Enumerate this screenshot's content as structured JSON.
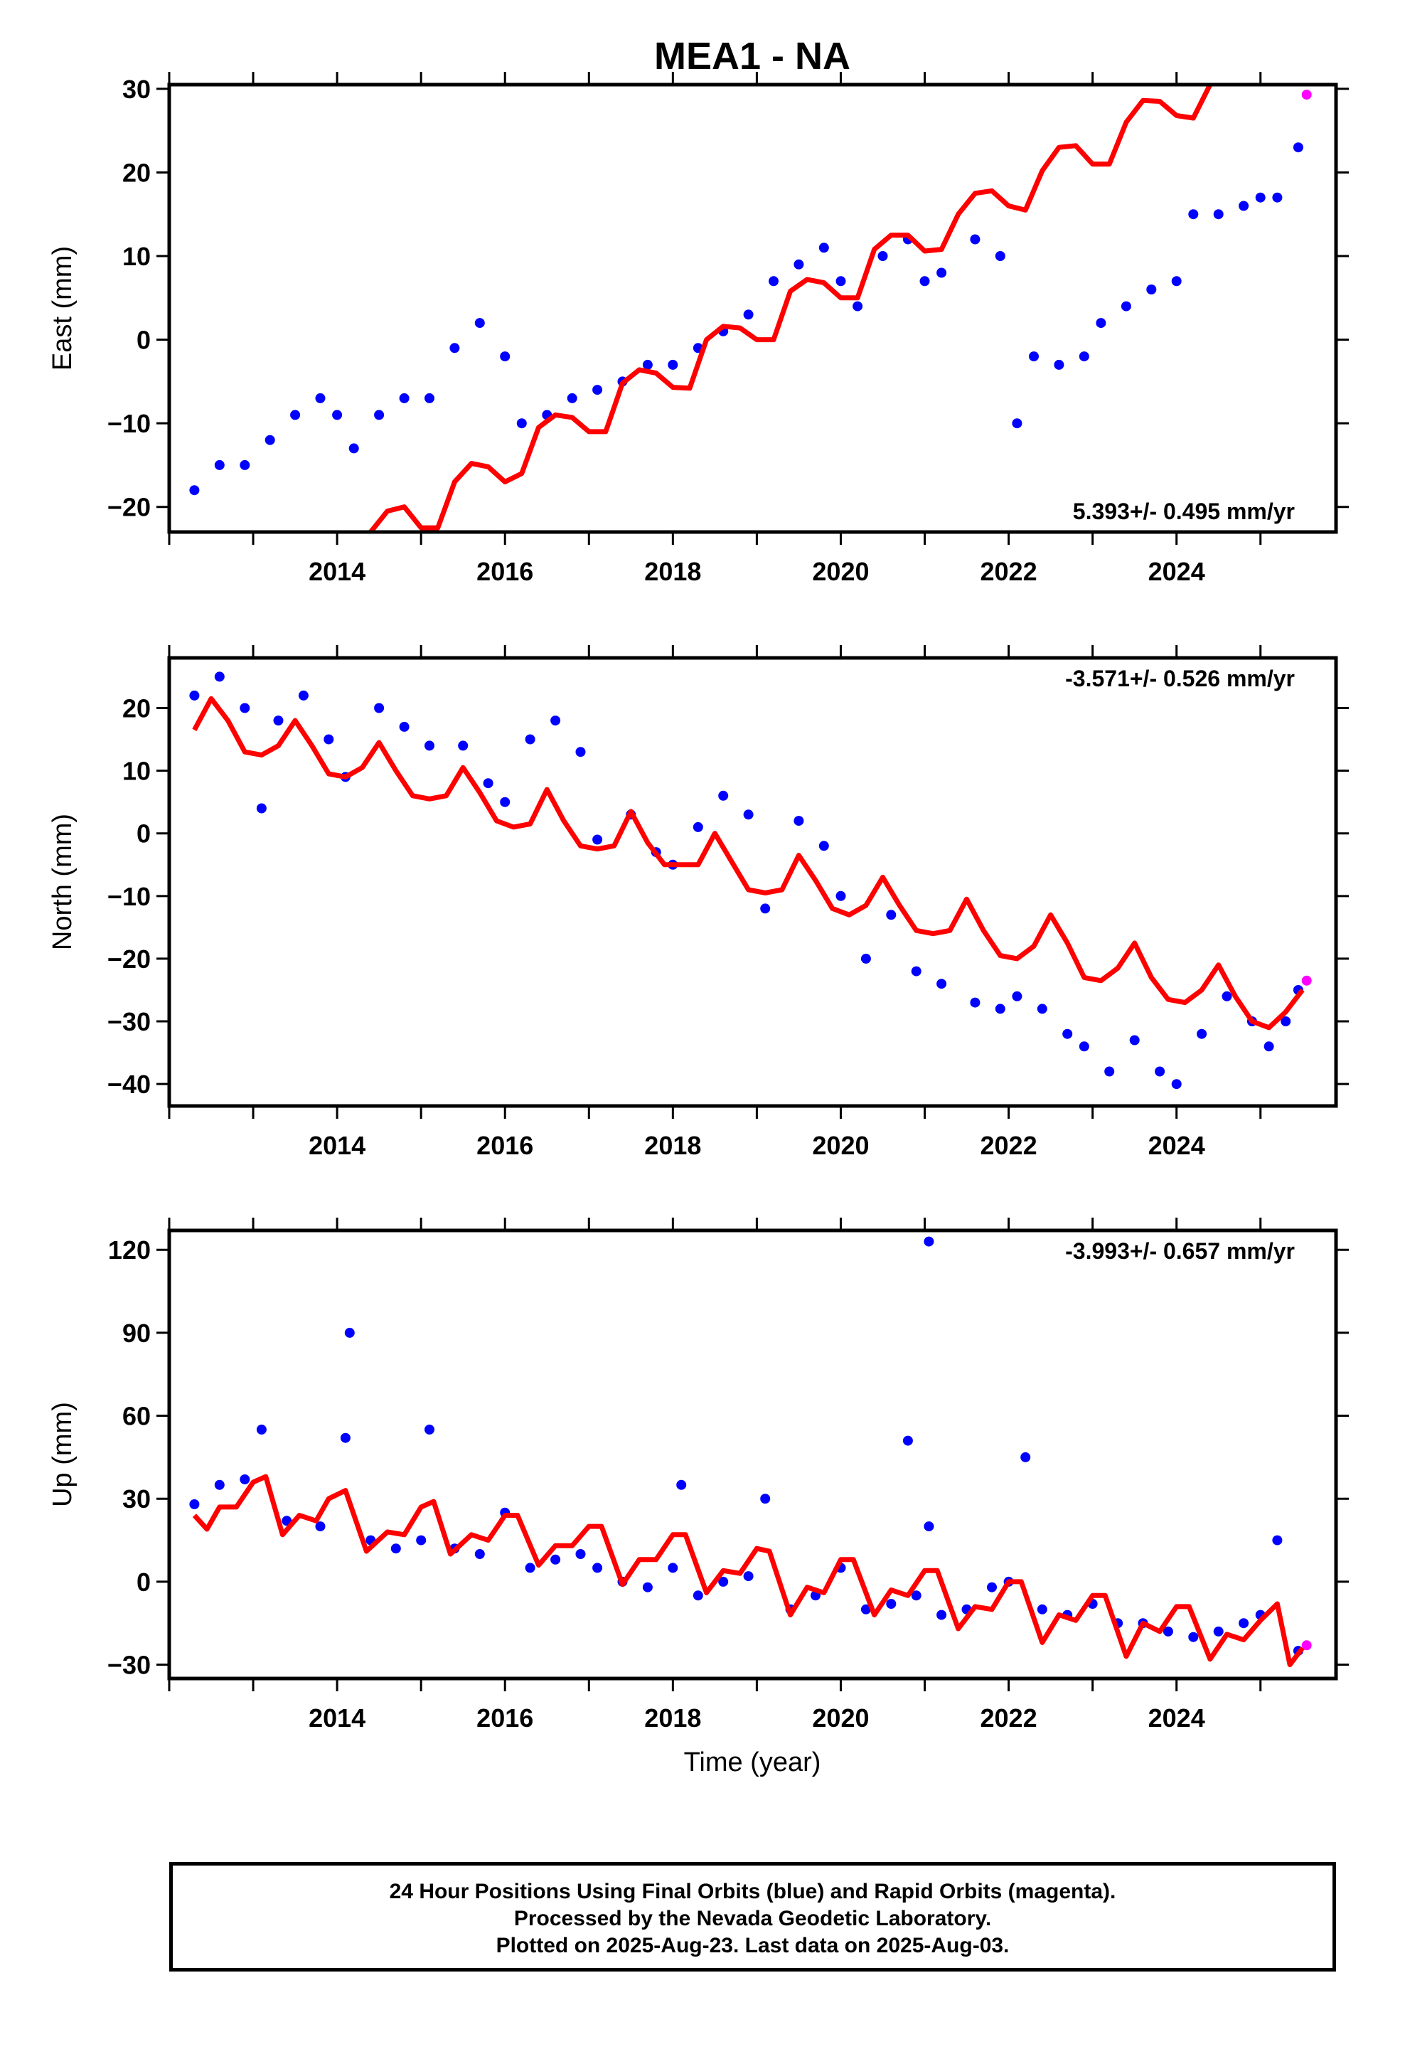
{
  "title": "MEA1 - NA",
  "xlabel": "Time (year)",
  "footer": {
    "line1": "24 Hour Positions Using Final Orbits (blue) and Rapid Orbits (magenta).",
    "line2": "Processed by the Nevada Geodetic Laboratory.",
    "line3": "Plotted on 2025-Aug-23. Last data on 2025-Aug-03."
  },
  "colors": {
    "final_orbits": "#0000ff",
    "rapid_orbits": "#ff00ff",
    "model_fit": "#ff0000",
    "axes": "#000000"
  },
  "chart_data": [
    {
      "type": "scatter",
      "panel": "east",
      "ylabel": "East (mm)",
      "rate_label": "5.393+/- 0.495 mm/yr",
      "xlim": [
        2012.0,
        2025.9
      ],
      "ylim": [
        -23,
        30.5
      ],
      "yticks": [
        -20,
        -10,
        0,
        10,
        20,
        30
      ],
      "xticks": [
        2014,
        2016,
        2018,
        2020,
        2022,
        2024
      ],
      "xtick_labels": [
        "2014",
        "2016",
        "2018",
        "2020",
        "2022",
        "2024"
      ],
      "series": [
        {
          "name": "Final Orbits",
          "x": [
            2012.3,
            2012.6,
            2012.9,
            2013.2,
            2013.5,
            2013.8,
            2014.0,
            2014.2,
            2014.5,
            2014.8,
            2015.1,
            2015.4,
            2015.7,
            2016.0,
            2016.2,
            2016.5,
            2016.8,
            2017.1,
            2017.4,
            2017.7,
            2018.0,
            2018.3,
            2018.6,
            2018.9,
            2019.2,
            2019.5,
            2019.8,
            2020.0,
            2020.2,
            2020.5,
            2020.8,
            2021.0,
            2021.2,
            2021.6,
            2021.9,
            2022.1,
            2022.3,
            2022.6,
            2022.9,
            2023.1,
            2023.4,
            2023.7,
            2024.0,
            2024.2,
            2024.5,
            2024.8,
            2025.0,
            2025.2,
            2025.45
          ],
          "y": [
            -18,
            -15,
            -15,
            -12,
            -9,
            -7,
            -9,
            -13,
            -9,
            -7,
            -7,
            -1,
            2,
            -2,
            -10,
            -9,
            -7,
            -6,
            -5,
            -3,
            -3,
            -1,
            1,
            3,
            7,
            9,
            11,
            7,
            4,
            10,
            12,
            7,
            8,
            12,
            10,
            -10,
            -2,
            -3,
            -2,
            2,
            4,
            6,
            7,
            15,
            15,
            16,
            17,
            17,
            23
          ]
        },
        {
          "name": "Rapid Orbits",
          "x": [
            2025.55
          ],
          "y": [
            29.3
          ]
        },
        {
          "name": "Model Fit",
          "x": [
            2014.4,
            2014.6,
            2014.8,
            2015.0,
            2015.2,
            2015.4,
            2015.6,
            2015.8,
            2016.0,
            2016.2,
            2016.4,
            2016.6,
            2016.8,
            2017.0,
            2017.2,
            2017.4,
            2017.6,
            2017.8,
            2018.0,
            2018.2,
            2018.4,
            2018.6,
            2018.8,
            2019.0,
            2019.2,
            2019.4,
            2019.6,
            2019.8,
            2020.0,
            2020.2,
            2020.4,
            2020.6,
            2020.8,
            2021.0,
            2021.2,
            2021.4,
            2021.6,
            2021.8,
            2022.0,
            2022.2,
            2022.4,
            2022.6,
            2022.8,
            2023.0,
            2023.2,
            2023.4,
            2023.6,
            2023.8,
            2024.0,
            2024.2,
            2024.4
          ],
          "y": [
            -23,
            -20.5,
            -20,
            -22.5,
            -22.5,
            -17,
            -14.8,
            -15.2,
            -17,
            -16,
            -10.5,
            -9,
            -9.3,
            -11,
            -11,
            -5.2,
            -3.6,
            -4,
            -5.7,
            -5.8,
            0,
            1.6,
            1.4,
            0,
            0,
            5.8,
            7.2,
            6.8,
            5,
            5,
            10.8,
            12.5,
            12.5,
            10.6,
            10.8,
            15,
            17.5,
            17.8,
            16,
            15.5,
            20.2,
            23,
            23.2,
            21,
            21,
            26,
            28.6,
            28.5,
            26.8,
            26.5,
            30.5
          ]
        }
      ]
    },
    {
      "type": "scatter",
      "panel": "north",
      "ylabel": "North (mm)",
      "rate_label": "-3.571+/- 0.526 mm/yr",
      "xlim": [
        2012.0,
        2025.9
      ],
      "ylim": [
        -43.5,
        28
      ],
      "yticks": [
        -40,
        -30,
        -20,
        -10,
        0,
        10,
        20
      ],
      "xticks": [
        2014,
        2016,
        2018,
        2020,
        2022,
        2024
      ],
      "xtick_labels": [
        "2014",
        "2016",
        "2018",
        "2020",
        "2022",
        "2024"
      ],
      "series": [
        {
          "name": "Final Orbits",
          "x": [
            2012.3,
            2012.6,
            2012.9,
            2013.1,
            2013.3,
            2013.6,
            2013.9,
            2014.1,
            2014.5,
            2014.8,
            2015.1,
            2015.5,
            2015.8,
            2016.0,
            2016.3,
            2016.6,
            2016.9,
            2017.1,
            2017.5,
            2017.8,
            2018.0,
            2018.3,
            2018.6,
            2018.9,
            2019.1,
            2019.5,
            2019.8,
            2020.0,
            2020.3,
            2020.6,
            2020.9,
            2021.2,
            2021.6,
            2021.9,
            2022.1,
            2022.4,
            2022.7,
            2022.9,
            2023.2,
            2023.5,
            2023.8,
            2024.0,
            2024.3,
            2024.6,
            2024.9,
            2025.1,
            2025.3,
            2025.45
          ],
          "y": [
            22,
            25,
            20,
            4,
            18,
            22,
            15,
            9,
            20,
            17,
            14,
            14,
            8,
            5,
            15,
            18,
            13,
            -1,
            3,
            -3,
            -5,
            1,
            6,
            3,
            -12,
            2,
            -2,
            -10,
            -20,
            -13,
            -22,
            -24,
            -27,
            -28,
            -26,
            -28,
            -32,
            -34,
            -38,
            -33,
            -38,
            -40,
            -32,
            -26,
            -30,
            -34,
            -30,
            -25
          ]
        },
        {
          "name": "Rapid Orbits",
          "x": [
            2025.55
          ],
          "y": [
            -23.5
          ]
        },
        {
          "name": "Model Fit",
          "x": [
            2012.3,
            2012.5,
            2012.7,
            2012.9,
            2013.1,
            2013.3,
            2013.5,
            2013.7,
            2013.9,
            2014.1,
            2014.3,
            2014.5,
            2014.7,
            2014.9,
            2015.1,
            2015.3,
            2015.5,
            2015.7,
            2015.9,
            2016.1,
            2016.3,
            2016.5,
            2016.7,
            2016.9,
            2017.1,
            2017.3,
            2017.5,
            2017.7,
            2017.9,
            2018.1,
            2018.3,
            2018.5,
            2018.7,
            2018.9,
            2019.1,
            2019.3,
            2019.5,
            2019.7,
            2019.9,
            2020.1,
            2020.3,
            2020.5,
            2020.7,
            2020.9,
            2021.1,
            2021.3,
            2021.5,
            2021.7,
            2021.9,
            2022.1,
            2022.3,
            2022.5,
            2022.7,
            2022.9,
            2023.1,
            2023.3,
            2023.5,
            2023.7,
            2023.9,
            2024.1,
            2024.3,
            2024.5,
            2024.7,
            2024.9,
            2025.1,
            2025.3,
            2025.5
          ],
          "y": [
            16.5,
            21.5,
            18,
            13,
            12.5,
            14,
            18,
            14,
            9.5,
            9,
            10.5,
            14.5,
            10,
            6,
            5.5,
            6,
            10.5,
            6.5,
            2,
            1,
            1.5,
            7,
            2,
            -2,
            -2.5,
            -2,
            3.5,
            -1.5,
            -5,
            -5,
            -5,
            0,
            -4.5,
            -9,
            -9.5,
            -9,
            -3.5,
            -7.5,
            -12,
            -13,
            -11.5,
            -7,
            -11.5,
            -15.5,
            -16,
            -15.5,
            -10.5,
            -15.5,
            -19.5,
            -20,
            -18,
            -13,
            -17.5,
            -23,
            -23.5,
            -21.5,
            -17.5,
            -23,
            -26.5,
            -27,
            -25,
            -21,
            -26,
            -30,
            -31,
            -28.5,
            -25
          ]
        }
      ]
    },
    {
      "type": "scatter",
      "panel": "up",
      "ylabel": "Up (mm)",
      "rate_label": "-3.993+/- 0.657 mm/yr",
      "xlim": [
        2012.0,
        2025.9
      ],
      "ylim": [
        -35,
        127
      ],
      "yticks": [
        -30,
        0,
        30,
        60,
        90,
        120
      ],
      "xticks": [
        2014,
        2016,
        2018,
        2020,
        2022,
        2024
      ],
      "xtick_labels": [
        "2014",
        "2016",
        "2018",
        "2020",
        "2022",
        "2024"
      ],
      "series": [
        {
          "name": "Final Orbits",
          "x": [
            2012.3,
            2012.6,
            2012.9,
            2013.1,
            2013.4,
            2013.8,
            2014.1,
            2014.4,
            2014.7,
            2015.0,
            2015.1,
            2015.4,
            2015.7,
            2016.0,
            2016.3,
            2016.6,
            2016.9,
            2017.1,
            2017.4,
            2017.7,
            2018.0,
            2018.1,
            2018.3,
            2018.6,
            2018.9,
            2019.1,
            2019.4,
            2019.7,
            2020.0,
            2020.3,
            2020.6,
            2020.9,
            2021.05,
            2021.2,
            2021.5,
            2021.8,
            2022.0,
            2022.2,
            2022.4,
            2022.7,
            2023.0,
            2023.3,
            2023.6,
            2023.9,
            2024.2,
            2024.5,
            2024.8,
            2025.0,
            2025.2,
            2025.45,
            2014.15,
            2021.05,
            2020.8
          ],
          "y": [
            28,
            35,
            37,
            55,
            22,
            20,
            52,
            15,
            12,
            15,
            55,
            12,
            10,
            25,
            5,
            8,
            10,
            5,
            0,
            -2,
            5,
            35,
            -5,
            0,
            2,
            30,
            -10,
            -5,
            5,
            -10,
            -8,
            -5,
            20,
            -12,
            -10,
            -2,
            0,
            45,
            -10,
            -12,
            -8,
            -15,
            -15,
            -18,
            -20,
            -18,
            -15,
            -12,
            15,
            -25,
            90,
            123,
            51
          ]
        },
        {
          "name": "Rapid Orbits",
          "x": [
            2025.55
          ],
          "y": [
            -23
          ]
        },
        {
          "name": "Model Fit",
          "x": [
            2012.3,
            2012.45,
            2012.6,
            2012.8,
            2013.0,
            2013.15,
            2013.35,
            2013.55,
            2013.75,
            2013.9,
            2014.1,
            2014.35,
            2014.6,
            2014.8,
            2015.0,
            2015.15,
            2015.35,
            2015.6,
            2015.8,
            2016.0,
            2016.15,
            2016.4,
            2016.6,
            2016.8,
            2017.0,
            2017.15,
            2017.4,
            2017.6,
            2017.8,
            2018.0,
            2018.15,
            2018.4,
            2018.6,
            2018.8,
            2019.0,
            2019.15,
            2019.4,
            2019.6,
            2019.8,
            2020.0,
            2020.15,
            2020.4,
            2020.6,
            2020.8,
            2021.0,
            2021.15,
            2021.4,
            2021.6,
            2021.8,
            2022.0,
            2022.15,
            2022.4,
            2022.6,
            2022.8,
            2023.0,
            2023.15,
            2023.4,
            2023.6,
            2023.8,
            2024.0,
            2024.15,
            2024.4,
            2024.6,
            2024.8,
            2025.0,
            2025.2,
            2025.35,
            2025.5
          ],
          "y": [
            24,
            19,
            27,
            27,
            36,
            38,
            17,
            24,
            22,
            30,
            33,
            11,
            18,
            17,
            27,
            29,
            10,
            17,
            15,
            24,
            24,
            6,
            13,
            13,
            20,
            20,
            -1,
            8,
            8,
            17,
            17,
            -4,
            4,
            3,
            12,
            11,
            -12,
            -2,
            -4,
            8,
            8,
            -12,
            -3,
            -5,
            4,
            4,
            -17,
            -9,
            -10,
            0,
            0,
            -22,
            -12,
            -14,
            -5,
            -5,
            -27,
            -15,
            -18,
            -9,
            -9,
            -28,
            -19,
            -21,
            -14,
            -8,
            -30,
            -24
          ]
        }
      ]
    }
  ]
}
